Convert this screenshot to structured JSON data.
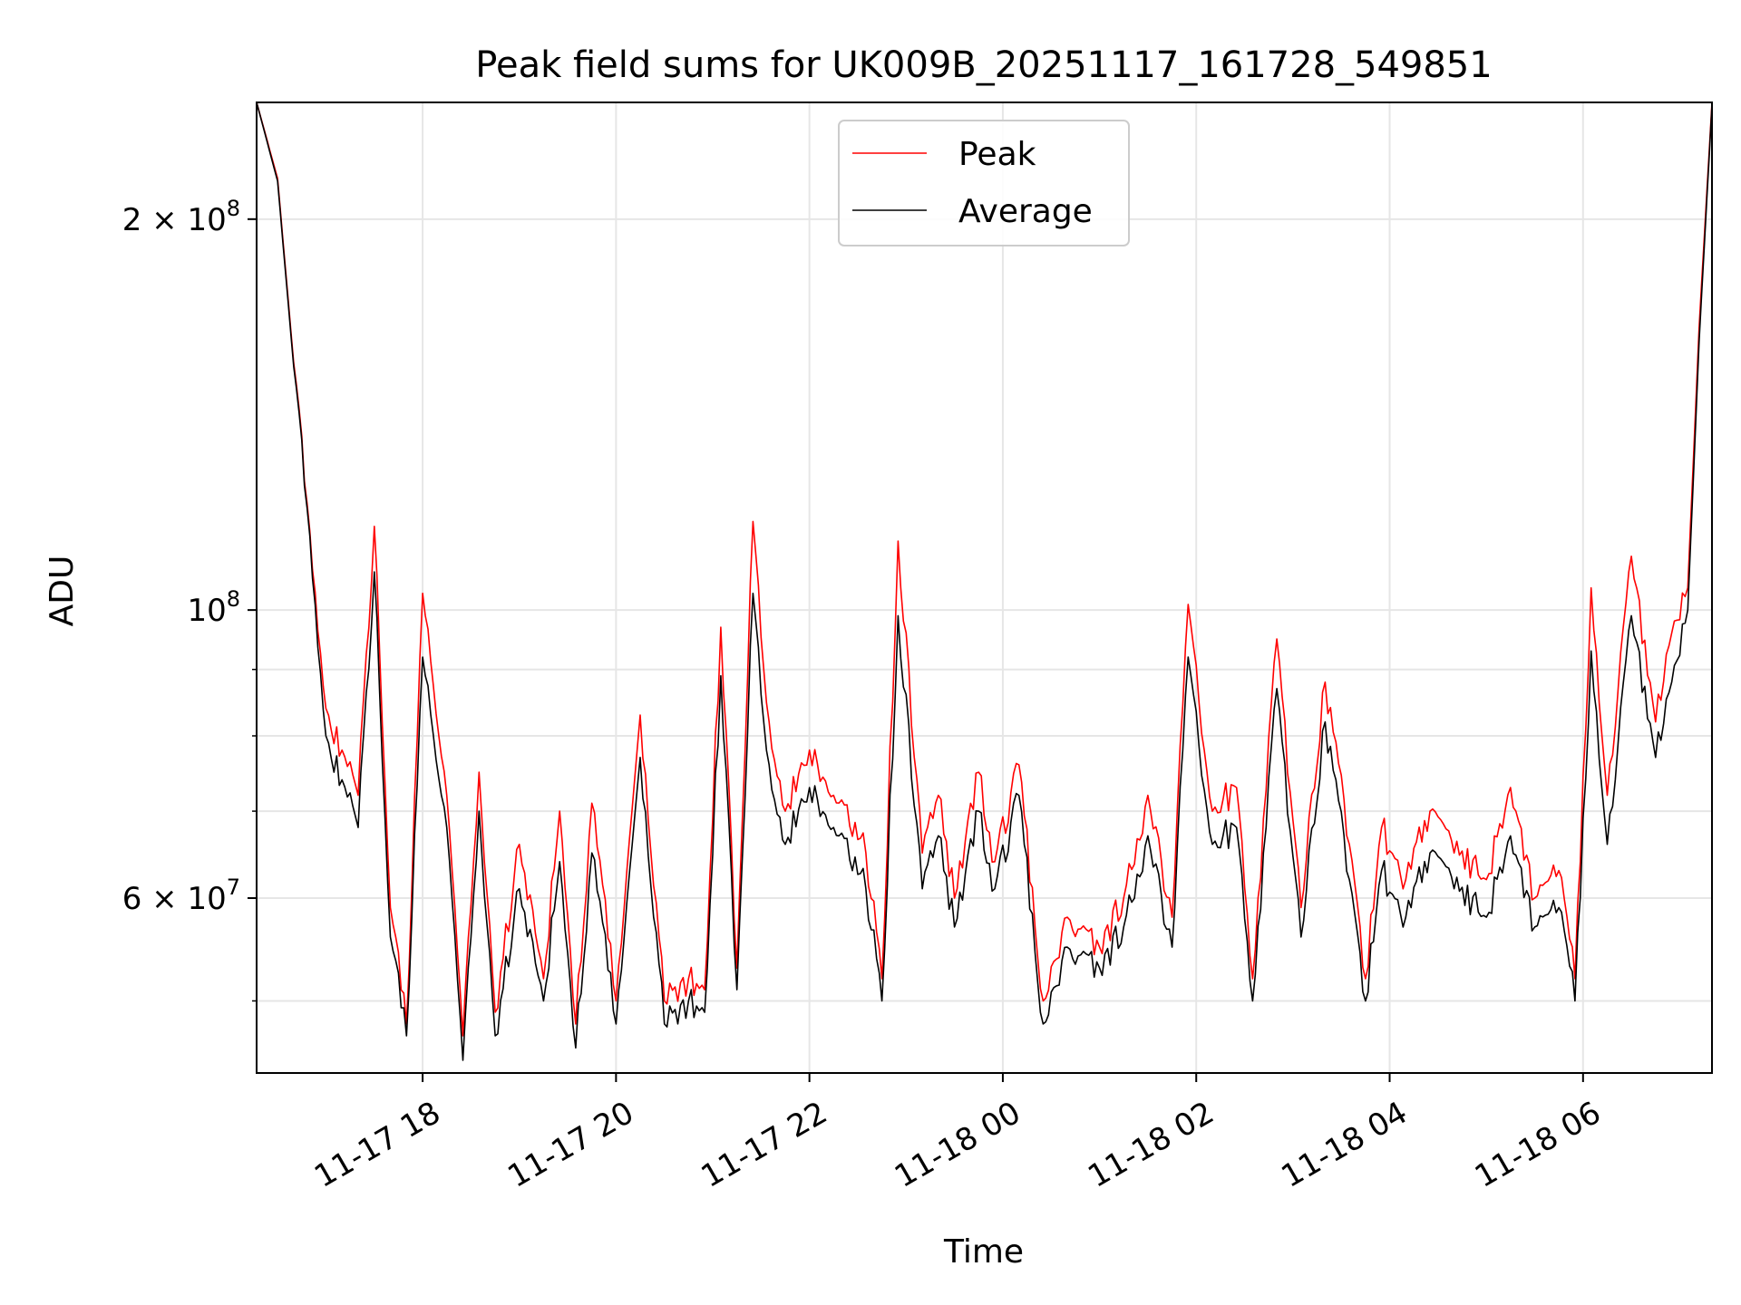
{
  "chart_data": {
    "type": "line",
    "title": "Peak field sums for UK009B_20251117_161728_549851",
    "xlabel": "Time",
    "ylabel": "ADU",
    "yscale": "log",
    "grid": true,
    "legend_position": "upper center",
    "xlim": [
      "2025-11-17 16:17",
      "2025-11-18 07:20"
    ],
    "ylim": [
      44000000,
      246000000
    ],
    "x_ticks": [
      {
        "value": "2025-11-17 18:00",
        "label": "11-17 18"
      },
      {
        "value": "2025-11-17 20:00",
        "label": "11-17 20"
      },
      {
        "value": "2025-11-17 22:00",
        "label": "11-17 22"
      },
      {
        "value": "2025-11-18 00:00",
        "label": "11-18 00"
      },
      {
        "value": "2025-11-18 02:00",
        "label": "11-18 02"
      },
      {
        "value": "2025-11-18 04:00",
        "label": "11-18 04"
      },
      {
        "value": "2025-11-18 06:00",
        "label": "11-18 06"
      }
    ],
    "y_ticks_major": [
      {
        "value": 100000000,
        "label_base": "10",
        "label_exp": "8",
        "label_mant": ""
      },
      {
        "value": 200000000,
        "label_base": "10",
        "label_exp": "8",
        "label_mant": "2 × "
      },
      {
        "value": 60000000,
        "label_base": "10",
        "label_exp": "7",
        "label_mant": "6 × "
      }
    ],
    "y_ticks_minor": [
      50000000,
      70000000,
      80000000,
      90000000
    ],
    "series": [
      {
        "name": "Peak",
        "color": "#ff0000",
        "x": [
          "2025-11-17 16:17",
          "2025-11-17 16:30",
          "2025-11-17 16:40",
          "2025-11-17 16:50",
          "2025-11-17 17:00",
          "2025-11-17 17:10",
          "2025-11-17 17:20",
          "2025-11-17 17:30",
          "2025-11-17 17:40",
          "2025-11-17 17:50",
          "2025-11-17 18:00",
          "2025-11-17 18:15",
          "2025-11-17 18:25",
          "2025-11-17 18:35",
          "2025-11-17 18:45",
          "2025-11-17 19:00",
          "2025-11-17 19:15",
          "2025-11-17 19:25",
          "2025-11-17 19:35",
          "2025-11-17 19:45",
          "2025-11-17 20:00",
          "2025-11-17 20:15",
          "2025-11-17 20:30",
          "2025-11-17 20:45",
          "2025-11-17 20:55",
          "2025-11-17 21:05",
          "2025-11-17 21:15",
          "2025-11-17 21:25",
          "2025-11-17 21:35",
          "2025-11-17 21:45",
          "2025-11-17 22:00",
          "2025-11-17 22:15",
          "2025-11-17 22:35",
          "2025-11-17 22:45",
          "2025-11-17 22:55",
          "2025-11-17 23:10",
          "2025-11-17 23:20",
          "2025-11-17 23:30",
          "2025-11-17 23:45",
          "2025-11-17 23:55",
          "2025-11-18 00:10",
          "2025-11-18 00:25",
          "2025-11-18 00:40",
          "2025-11-18 01:00",
          "2025-11-18 01:15",
          "2025-11-18 01:30",
          "2025-11-18 01:45",
          "2025-11-18 01:55",
          "2025-11-18 02:10",
          "2025-11-18 02:25",
          "2025-11-18 02:35",
          "2025-11-18 02:50",
          "2025-11-18 03:05",
          "2025-11-18 03:20",
          "2025-11-18 03:35",
          "2025-11-18 03:45",
          "2025-11-18 03:55",
          "2025-11-18 04:10",
          "2025-11-18 04:25",
          "2025-11-18 04:40",
          "2025-11-18 05:00",
          "2025-11-18 05:15",
          "2025-11-18 05:30",
          "2025-11-18 05:45",
          "2025-11-18 05:55",
          "2025-11-18 06:05",
          "2025-11-18 06:15",
          "2025-11-18 06:30",
          "2025-11-18 06:45",
          "2025-11-18 06:55",
          "2025-11-18 07:05",
          "2025-11-18 07:12",
          "2025-11-18 07:20"
        ],
        "values": [
          246000000,
          215000000,
          155000000,
          115000000,
          84000000,
          78000000,
          72000000,
          116000000,
          59000000,
          48000000,
          103000000,
          72000000,
          47000000,
          75000000,
          49000000,
          66000000,
          52000000,
          70000000,
          48000000,
          71000000,
          50000000,
          83000000,
          50000000,
          52000000,
          51000000,
          97000000,
          53000000,
          117000000,
          82000000,
          70000000,
          78000000,
          72000000,
          65000000,
          52000000,
          113000000,
          65000000,
          72000000,
          60000000,
          75000000,
          64000000,
          76000000,
          50000000,
          58000000,
          55000000,
          60000000,
          72000000,
          58000000,
          101000000,
          70000000,
          73000000,
          52000000,
          95000000,
          59000000,
          88000000,
          66000000,
          52000000,
          68000000,
          62000000,
          70000000,
          65000000,
          62000000,
          73000000,
          60000000,
          63000000,
          52000000,
          104000000,
          72000000,
          110000000,
          82000000,
          96000000,
          104000000,
          165000000,
          246000000
        ]
      },
      {
        "name": "Average",
        "color": "#000000",
        "x": [
          "2025-11-17 16:17",
          "2025-11-17 16:30",
          "2025-11-17 16:40",
          "2025-11-17 16:50",
          "2025-11-17 17:00",
          "2025-11-17 17:10",
          "2025-11-17 17:20",
          "2025-11-17 17:30",
          "2025-11-17 17:40",
          "2025-11-17 17:50",
          "2025-11-17 18:00",
          "2025-11-17 18:15",
          "2025-11-17 18:25",
          "2025-11-17 18:35",
          "2025-11-17 18:45",
          "2025-11-17 19:00",
          "2025-11-17 19:15",
          "2025-11-17 19:25",
          "2025-11-17 19:35",
          "2025-11-17 19:45",
          "2025-11-17 20:00",
          "2025-11-17 20:15",
          "2025-11-17 20:30",
          "2025-11-17 20:45",
          "2025-11-17 20:55",
          "2025-11-17 21:05",
          "2025-11-17 21:15",
          "2025-11-17 21:25",
          "2025-11-17 21:35",
          "2025-11-17 21:45",
          "2025-11-17 22:00",
          "2025-11-17 22:15",
          "2025-11-17 22:35",
          "2025-11-17 22:45",
          "2025-11-17 22:55",
          "2025-11-17 23:10",
          "2025-11-17 23:20",
          "2025-11-17 23:30",
          "2025-11-17 23:45",
          "2025-11-17 23:55",
          "2025-11-18 00:10",
          "2025-11-18 00:25",
          "2025-11-18 00:40",
          "2025-11-18 01:00",
          "2025-11-18 01:15",
          "2025-11-18 01:30",
          "2025-11-18 01:45",
          "2025-11-18 01:55",
          "2025-11-18 02:10",
          "2025-11-18 02:25",
          "2025-11-18 02:35",
          "2025-11-18 02:50",
          "2025-11-18 03:05",
          "2025-11-18 03:20",
          "2025-11-18 03:35",
          "2025-11-18 03:45",
          "2025-11-18 03:55",
          "2025-11-18 04:10",
          "2025-11-18 04:25",
          "2025-11-18 04:40",
          "2025-11-18 05:00",
          "2025-11-18 05:15",
          "2025-11-18 05:30",
          "2025-11-18 05:45",
          "2025-11-18 05:55",
          "2025-11-18 06:05",
          "2025-11-18 06:15",
          "2025-11-18 06:30",
          "2025-11-18 06:45",
          "2025-11-18 06:55",
          "2025-11-18 07:05",
          "2025-11-18 07:12",
          "2025-11-18 07:20"
        ],
        "values": [
          246000000,
          214000000,
          154000000,
          114000000,
          80000000,
          74000000,
          68000000,
          107000000,
          56000000,
          47000000,
          92000000,
          68000000,
          45000000,
          70000000,
          47000000,
          61000000,
          50000000,
          64000000,
          46000000,
          65000000,
          48000000,
          77000000,
          48000000,
          50000000,
          49000000,
          89000000,
          51000000,
          103000000,
          76000000,
          66000000,
          73000000,
          68000000,
          61000000,
          50000000,
          99000000,
          61000000,
          67000000,
          57000000,
          70000000,
          61000000,
          72000000,
          48000000,
          55000000,
          53000000,
          57000000,
          67000000,
          55000000,
          92000000,
          66000000,
          68000000,
          50000000,
          87000000,
          56000000,
          82000000,
          62000000,
          50000000,
          63000000,
          58000000,
          65000000,
          61000000,
          58000000,
          67000000,
          57000000,
          59000000,
          50000000,
          93000000,
          66000000,
          99000000,
          77000000,
          88000000,
          100000000,
          161000000,
          245000000
        ]
      }
    ]
  }
}
